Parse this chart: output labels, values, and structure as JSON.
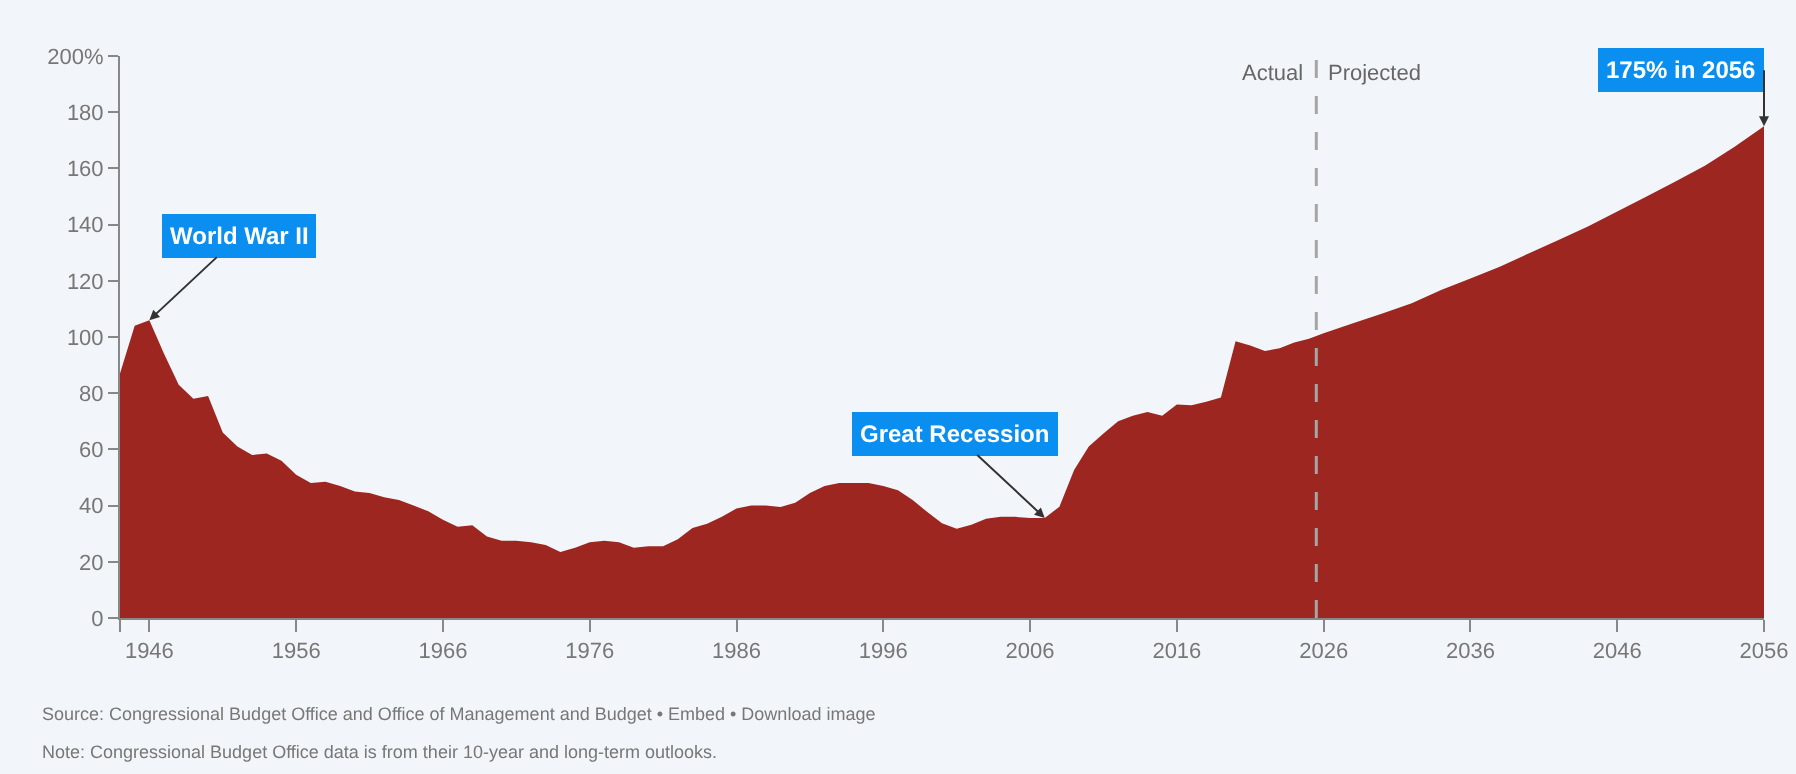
{
  "chart_data": {
    "type": "area",
    "x": [
      1944,
      1945,
      1946,
      1947,
      1948,
      1949,
      1950,
      1951,
      1952,
      1953,
      1954,
      1955,
      1956,
      1957,
      1958,
      1959,
      1960,
      1961,
      1962,
      1963,
      1964,
      1965,
      1966,
      1967,
      1968,
      1969,
      1970,
      1971,
      1972,
      1973,
      1974,
      1975,
      1976,
      1977,
      1978,
      1979,
      1980,
      1981,
      1982,
      1983,
      1984,
      1985,
      1986,
      1987,
      1988,
      1989,
      1990,
      1991,
      1992,
      1993,
      1994,
      1995,
      1996,
      1997,
      1998,
      1999,
      2000,
      2001,
      2002,
      2003,
      2004,
      2005,
      2006,
      2007,
      2008,
      2009,
      2010,
      2011,
      2012,
      2013,
      2014,
      2015,
      2016,
      2017,
      2018,
      2019,
      2020,
      2021,
      2022,
      2023,
      2024,
      2025,
      2026,
      2028,
      2030,
      2032,
      2034,
      2036,
      2038,
      2040,
      2042,
      2044,
      2046,
      2048,
      2050,
      2052,
      2054,
      2056
    ],
    "series": [
      {
        "color": "#9e2620",
        "values": [
          87,
          104,
          106,
          94,
          83,
          78,
          79,
          66,
          61,
          58,
          58.5,
          56,
          51,
          48,
          48.5,
          47,
          45,
          44.5,
          43,
          42,
          40,
          38,
          35,
          32.5,
          33,
          29,
          27.5,
          27.5,
          27,
          26,
          23.5,
          25,
          27,
          27.5,
          27,
          25,
          25.5,
          25.5,
          28,
          32,
          33.5,
          36,
          39,
          40,
          40,
          39.5,
          41,
          44.5,
          47,
          48,
          48,
          48,
          47,
          45.5,
          42,
          37.7,
          33.7,
          31.8,
          33.2,
          35.3,
          36,
          36,
          35.6,
          35.6,
          39.6,
          52.7,
          61,
          65.7,
          70,
          72,
          73.3,
          72,
          76,
          75.7,
          77,
          78.5,
          98.5,
          97,
          95,
          96,
          98,
          99.4,
          101.3,
          104.9,
          108.4,
          112,
          116.7,
          120.8,
          125,
          129.8,
          134.5,
          139.3,
          144.7,
          150,
          155.4,
          161,
          167.7,
          175
        ]
      }
    ],
    "xlim": [
      1944,
      2056
    ],
    "xticks": [
      {
        "value": 1944,
        "label": null
      },
      1946,
      1956,
      1966,
      1976,
      1986,
      1996,
      2006,
      2016,
      2026,
      2036,
      2046,
      2056
    ],
    "ylim": [
      0,
      200
    ],
    "yticks": [
      0,
      20,
      40,
      60,
      80,
      100,
      120,
      140,
      160,
      180,
      {
        "value": 200,
        "label": "200%"
      }
    ],
    "grid": false,
    "ref_lines": [
      {
        "axis": "x",
        "value": 2025.5,
        "line_style": "dashed",
        "color": "#a6a6a6"
      }
    ],
    "annotations": [
      {
        "text": "Actual",
        "x": 2025.5
      },
      {
        "text": "Projected",
        "x": 2025.5
      },
      {
        "text": "World War II",
        "x": 1946,
        "y": 106
      },
      {
        "text": "Great Recession",
        "x": 2007,
        "y": 35.6
      },
      {
        "text": "175% in 2056",
        "x": 2056,
        "y": 175
      },
      "Source: Congressional Budget Office and Office of Management and Budget • Embed • Download image",
      "Note: Congressional Budget Office data is from their 10-year and long-term outlooks."
    ]
  }
}
